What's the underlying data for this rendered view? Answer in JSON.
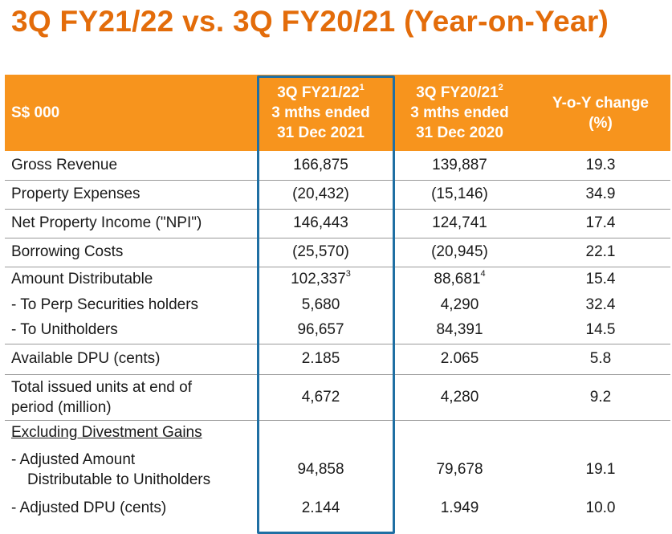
{
  "title": "3Q FY21/22 vs. 3Q FY20/21 (Year-on-Year)",
  "header": {
    "label": "S$ 000",
    "col1": {
      "line1": "3Q FY21/22",
      "sup": "1",
      "line2": "3 mths ended",
      "line3": "31 Dec 2021"
    },
    "col2": {
      "line1": "3Q FY20/21",
      "sup": "2",
      "line2": "3 mths ended",
      "line3": "31 Dec 2020"
    },
    "col3": {
      "line1": "Y-o-Y change",
      "line2": "(%)"
    }
  },
  "rows": [
    {
      "label": "Gross Revenue",
      "v1": "166,875",
      "v2": "139,887",
      "v3": "19.3"
    },
    {
      "label": "Property Expenses",
      "v1": "(20,432)",
      "v2": "(15,146)",
      "v3": "34.9"
    },
    {
      "label": "Net Property Income (\"NPI\")",
      "v1": "146,443",
      "v2": "124,741",
      "v3": "17.4"
    },
    {
      "label": "Borrowing Costs",
      "v1": "(25,570)",
      "v2": "(20,945)",
      "v3": "22.1"
    },
    {
      "label": "Amount Distributable",
      "v1": "102,337",
      "v1_sup": "3",
      "v2": "88,681",
      "v2_sup": "4",
      "v3": "15.4"
    },
    {
      "label": "- To Perp Securities holders",
      "v1": "5,680",
      "v2": "4,290",
      "v3": "32.4"
    },
    {
      "label": "- To Unitholders",
      "v1": "96,657",
      "v2": "84,391",
      "v3": "14.5"
    },
    {
      "label": "Available DPU (cents)",
      "v1": "2.185",
      "v2": "2.065",
      "v3": "5.8"
    },
    {
      "label_line1": "Total issued units at end of",
      "label_line2": "period (million)",
      "v1": "4,672",
      "v2": "4,280",
      "v3": "9.2"
    },
    {
      "label": "Excluding Divestment Gains"
    },
    {
      "label_line1": "-  Adjusted Amount",
      "label_line2": "Distributable to Unitholders",
      "v1": "94,858",
      "v2": "79,678",
      "v3": "19.1"
    },
    {
      "label": "-  Adjusted DPU (cents)",
      "v1": "2.144",
      "v2": "1.949",
      "v3": "10.0"
    }
  ]
}
